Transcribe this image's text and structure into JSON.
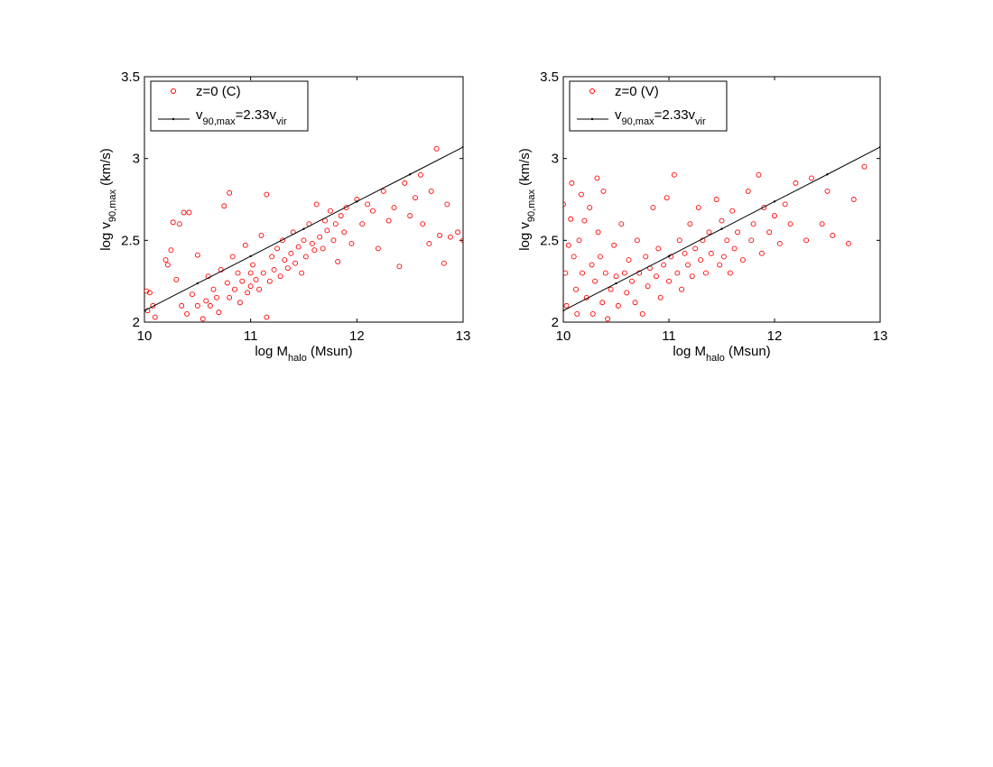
{
  "chart_data": [
    {
      "type": "scatter",
      "xlabel_parts": [
        "log M",
        "halo",
        " (Msun)"
      ],
      "ylabel_parts": [
        "log v",
        "90,max",
        " (km/s)"
      ],
      "xlim": [
        10,
        13
      ],
      "ylim": [
        2,
        3.5
      ],
      "xticks": [
        10,
        11,
        12,
        13
      ],
      "yticks": [
        2,
        2.5,
        3,
        3.5
      ],
      "legend": "upper left",
      "series": [
        {
          "name": "z=0 (C)",
          "color": "#ff0000",
          "style": "markers",
          "x": [
            10.02,
            10.05,
            10.03,
            10.08,
            10.1,
            10.2,
            10.22,
            10.25,
            10.27,
            10.3,
            10.33,
            10.37,
            10.42,
            10.35,
            10.4,
            10.45,
            10.5,
            10.5,
            10.55,
            10.58,
            10.6,
            10.62,
            10.65,
            10.68,
            10.7,
            10.72,
            10.75,
            10.78,
            10.8,
            10.8,
            10.83,
            10.85,
            10.88,
            10.9,
            10.92,
            10.95,
            10.97,
            11.0,
            11.0,
            11.02,
            11.05,
            11.08,
            11.1,
            11.12,
            11.15,
            11.15,
            11.18,
            11.2,
            11.22,
            11.25,
            11.28,
            11.3,
            11.32,
            11.35,
            11.38,
            11.4,
            11.42,
            11.45,
            11.48,
            11.5,
            11.52,
            11.55,
            11.58,
            11.6,
            11.62,
            11.65,
            11.68,
            11.7,
            11.72,
            11.75,
            11.78,
            11.8,
            11.82,
            11.85,
            11.88,
            11.9,
            11.95,
            12.0,
            12.05,
            12.1,
            12.15,
            12.2,
            12.25,
            12.3,
            12.35,
            12.4,
            12.45,
            12.5,
            12.55,
            12.6,
            12.62,
            12.68,
            12.7,
            12.75,
            12.78,
            12.82,
            12.85,
            12.88,
            12.95,
            13.0
          ],
          "values": [
            2.19,
            2.18,
            2.07,
            2.1,
            2.03,
            2.38,
            2.35,
            2.44,
            2.61,
            2.26,
            2.6,
            2.67,
            2.67,
            2.1,
            2.05,
            2.17,
            2.41,
            2.1,
            2.02,
            2.13,
            2.28,
            2.1,
            2.2,
            2.15,
            2.06,
            2.32,
            2.71,
            2.24,
            2.79,
            2.15,
            2.4,
            2.2,
            2.3,
            2.12,
            2.25,
            2.47,
            2.18,
            2.3,
            2.22,
            2.35,
            2.26,
            2.2,
            2.53,
            2.3,
            2.78,
            2.03,
            2.25,
            2.4,
            2.32,
            2.45,
            2.28,
            2.5,
            2.38,
            2.33,
            2.42,
            2.55,
            2.36,
            2.46,
            2.3,
            2.5,
            2.4,
            2.6,
            2.48,
            2.44,
            2.72,
            2.52,
            2.45,
            2.62,
            2.56,
            2.68,
            2.5,
            2.6,
            2.37,
            2.65,
            2.55,
            2.7,
            2.48,
            2.75,
            2.6,
            2.72,
            2.68,
            2.45,
            2.8,
            2.62,
            2.7,
            2.34,
            2.85,
            2.65,
            2.76,
            2.9,
            2.6,
            2.48,
            2.8,
            3.06,
            2.53,
            2.36,
            2.72,
            2.52,
            2.55,
            2.5
          ]
        },
        {
          "name_parts": [
            "v",
            "90,max",
            "=2.33v",
            "vir"
          ],
          "color": "#000000",
          "style": "line",
          "x": [
            10,
            10.5,
            11,
            11.5,
            12,
            12.5,
            13
          ],
          "values": [
            2.07,
            2.237,
            2.403,
            2.57,
            2.737,
            2.903,
            3.07
          ]
        }
      ]
    },
    {
      "type": "scatter",
      "xlabel_parts": [
        "log M",
        "halo",
        " (Msun)"
      ],
      "ylabel_parts": [
        "log v",
        "90,max",
        " (km/s)"
      ],
      "xlim": [
        10,
        13
      ],
      "ylim": [
        2,
        3.5
      ],
      "xticks": [
        10,
        11,
        12,
        13
      ],
      "yticks": [
        2,
        2.5,
        3,
        3.5
      ],
      "legend": "upper left",
      "series": [
        {
          "name": "z=0 (V)",
          "color": "#ff0000",
          "style": "markers",
          "x": [
            10.0,
            10.02,
            10.03,
            10.05,
            10.07,
            10.08,
            10.1,
            10.12,
            10.13,
            10.15,
            10.17,
            10.18,
            10.2,
            10.22,
            10.25,
            10.27,
            10.28,
            10.3,
            10.32,
            10.33,
            10.35,
            10.37,
            10.38,
            10.4,
            10.42,
            10.45,
            10.48,
            10.5,
            10.52,
            10.55,
            10.58,
            10.6,
            10.62,
            10.65,
            10.68,
            10.7,
            10.72,
            10.75,
            10.78,
            10.8,
            10.82,
            10.85,
            10.88,
            10.9,
            10.92,
            10.95,
            10.98,
            11.0,
            11.02,
            11.05,
            11.08,
            11.1,
            11.12,
            11.15,
            11.18,
            11.2,
            11.22,
            11.25,
            11.28,
            11.3,
            11.32,
            11.35,
            11.38,
            11.4,
            11.45,
            11.48,
            11.5,
            11.52,
            11.55,
            11.58,
            11.6,
            11.62,
            11.65,
            11.7,
            11.75,
            11.78,
            11.8,
            11.85,
            11.88,
            11.9,
            11.95,
            12.0,
            12.05,
            12.1,
            12.15,
            12.2,
            12.3,
            12.35,
            12.45,
            12.5,
            12.55,
            12.7,
            12.75,
            12.85
          ],
          "values": [
            2.72,
            2.3,
            2.1,
            2.47,
            2.63,
            2.85,
            2.4,
            2.2,
            2.05,
            2.5,
            2.78,
            2.3,
            2.62,
            2.15,
            2.7,
            2.35,
            2.05,
            2.25,
            2.88,
            2.55,
            2.4,
            2.12,
            2.8,
            2.3,
            2.02,
            2.2,
            2.47,
            2.28,
            2.1,
            2.6,
            2.3,
            2.18,
            2.38,
            2.25,
            2.12,
            2.5,
            2.3,
            2.05,
            2.4,
            2.22,
            2.33,
            2.7,
            2.28,
            2.45,
            2.15,
            2.35,
            2.76,
            2.25,
            2.4,
            2.9,
            2.3,
            2.5,
            2.2,
            2.42,
            2.35,
            2.6,
            2.28,
            2.45,
            2.7,
            2.38,
            2.5,
            2.3,
            2.55,
            2.42,
            2.75,
            2.35,
            2.62,
            2.4,
            2.5,
            2.3,
            2.68,
            2.45,
            2.55,
            2.38,
            2.8,
            2.5,
            2.6,
            2.9,
            2.42,
            2.7,
            2.55,
            2.65,
            2.48,
            2.72,
            2.6,
            2.85,
            2.5,
            2.88,
            2.6,
            2.8,
            2.53,
            2.48,
            2.75,
            2.95
          ]
        },
        {
          "name_parts": [
            "v",
            "90,max",
            "=2.33v",
            "vir"
          ],
          "color": "#000000",
          "style": "line",
          "x": [
            10,
            10.5,
            11,
            11.5,
            12,
            12.5,
            13
          ],
          "values": [
            2.07,
            2.237,
            2.403,
            2.57,
            2.737,
            2.903,
            3.07
          ]
        }
      ]
    }
  ]
}
